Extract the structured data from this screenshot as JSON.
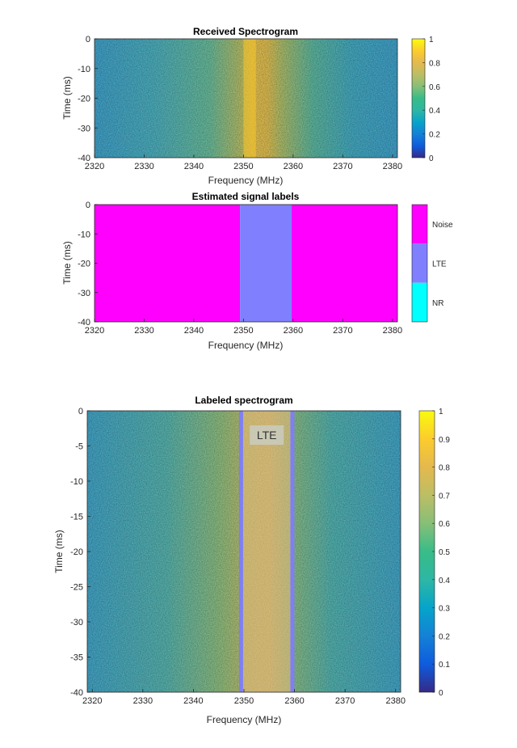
{
  "chart_data": [
    {
      "type": "heatmap",
      "title": "Received Spectrogram",
      "xlabel": "Frequency (MHz)",
      "ylabel": "Time (ms)",
      "xlim": [
        2320,
        2381
      ],
      "ylim": [
        -40,
        0
      ],
      "xticks": [
        "2320",
        "2330",
        "2340",
        "2350",
        "2360",
        "2370",
        "2380"
      ],
      "yticks": [
        "0",
        "-10",
        "-20",
        "-30",
        "-40"
      ],
      "colorbar": {
        "ticks": [
          "1",
          "0.8",
          "0.6",
          "0.4",
          "0.2",
          "0"
        ],
        "range": [
          0,
          1
        ],
        "colormap": "parula"
      },
      "signal_band_mhz": [
        2350,
        2360
      ],
      "grid": false
    },
    {
      "type": "heatmap",
      "title": "Estimated signal labels",
      "xlabel": "Frequency (MHz)",
      "ylabel": "Time (ms)",
      "xlim": [
        2320,
        2381
      ],
      "ylim": [
        -40,
        0
      ],
      "xticks": [
        "2320",
        "2330",
        "2340",
        "2350",
        "2360",
        "2370",
        "2380"
      ],
      "yticks": [
        "0",
        "-10",
        "-20",
        "-30",
        "-40"
      ],
      "regions": [
        {
          "label": "Noise",
          "x": [
            2320,
            2349.3
          ]
        },
        {
          "label": "LTE",
          "x": [
            2349.3,
            2359.7
          ]
        },
        {
          "label": "Noise",
          "x": [
            2359.7,
            2381
          ]
        }
      ],
      "colorbar": {
        "categories": [
          "Noise",
          "LTE",
          "NR"
        ],
        "colors": [
          "#ff00ff",
          "#8080ff",
          "#00ffff"
        ]
      },
      "grid": false
    },
    {
      "type": "heatmap",
      "title": "Labeled spectrogram",
      "xlabel": "Frequency (MHz)",
      "ylabel": "Time (ms)",
      "xlim": [
        2319,
        2381
      ],
      "ylim": [
        -40,
        0
      ],
      "xticks": [
        "2320",
        "2330",
        "2340",
        "2350",
        "2360",
        "2370",
        "2380"
      ],
      "yticks": [
        "0",
        "-5",
        "-10",
        "-15",
        "-20",
        "-25",
        "-30",
        "-35",
        "-40"
      ],
      "colorbar": {
        "ticks": [
          "1",
          "0.9",
          "0.8",
          "0.7",
          "0.6",
          "0.5",
          "0.4",
          "0.3",
          "0.2",
          "0.1",
          "0"
        ],
        "range": [
          0,
          1
        ],
        "colormap": "parula"
      },
      "annotation": {
        "text": "LTE",
        "x_range": [
          2349.5,
          2359.5
        ]
      },
      "grid": false
    }
  ]
}
